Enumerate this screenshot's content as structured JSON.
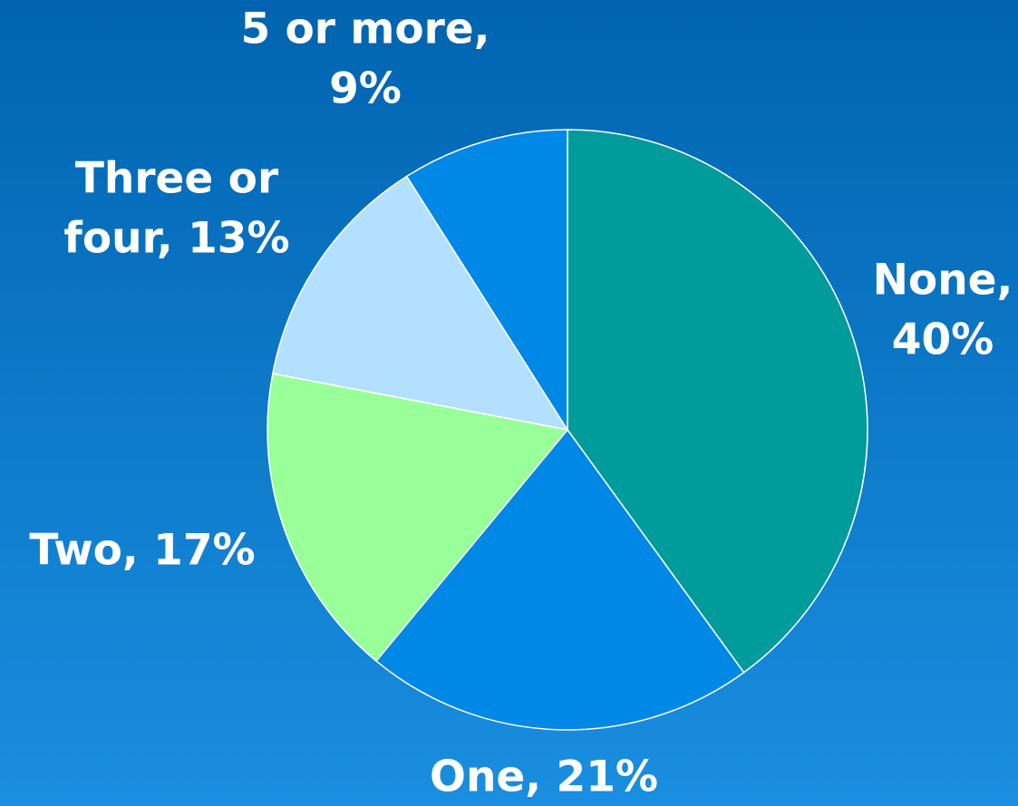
{
  "chart_data": {
    "type": "pie",
    "categories": [
      "None",
      "One",
      "Two",
      "Three or four",
      "5 or more"
    ],
    "values": [
      40,
      21,
      17,
      13,
      9
    ],
    "labels": [
      [
        "None,",
        "40%"
      ],
      [
        "One, 21%"
      ],
      [
        "Two, 17%"
      ],
      [
        "Three or",
        "four, 13%"
      ],
      [
        "5 or more,",
        "9%"
      ]
    ],
    "colors": [
      "#009b9b",
      "#0088e6",
      "#99ff99",
      "#b3e0ff",
      "#0088e6"
    ]
  }
}
